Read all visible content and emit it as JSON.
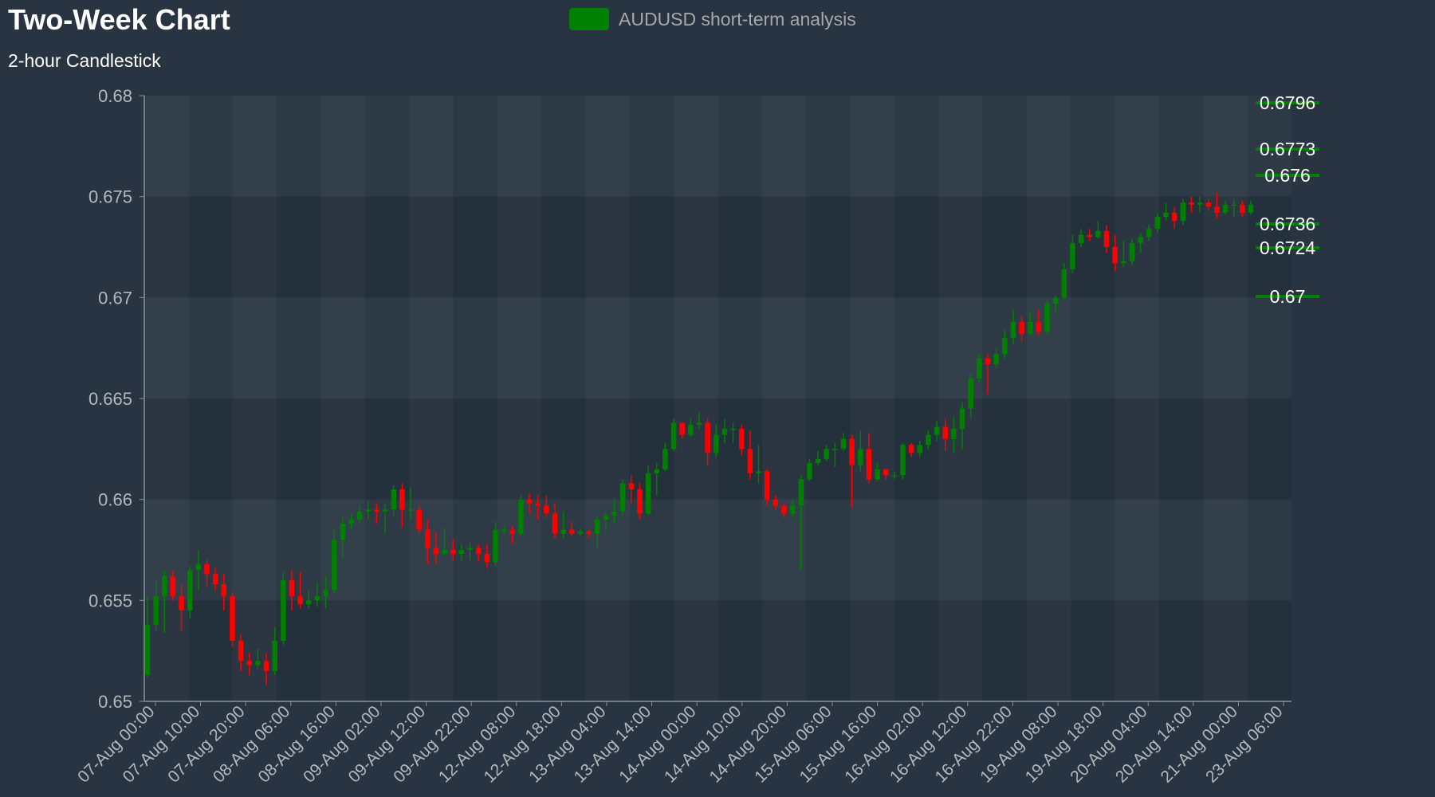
{
  "chart_data": {
    "type": "candlestick",
    "title": "Two-Week Chart",
    "subtitle": "2-hour Candlestick",
    "legend": {
      "label": "AUDUSD short-term analysis",
      "color": "#008000",
      "position": "top-center"
    },
    "ylim": [
      0.65,
      0.68
    ],
    "yticks": [
      "0.65",
      "0.655",
      "0.66",
      "0.665",
      "0.67",
      "0.675",
      "0.68"
    ],
    "xticks": [
      "07-Aug 00:00",
      "07-Aug 10:00",
      "07-Aug 20:00",
      "08-Aug 06:00",
      "08-Aug 16:00",
      "09-Aug 02:00",
      "09-Aug 12:00",
      "09-Aug 22:00",
      "12-Aug 08:00",
      "12-Aug 18:00",
      "13-Aug 04:00",
      "13-Aug 14:00",
      "14-Aug 00:00",
      "14-Aug 10:00",
      "14-Aug 20:00",
      "15-Aug 06:00",
      "15-Aug 16:00",
      "16-Aug 02:00",
      "16-Aug 12:00",
      "16-Aug 22:00",
      "19-Aug 08:00",
      "19-Aug 18:00",
      "20-Aug 04:00",
      "20-Aug 14:00",
      "21-Aug 00:00",
      "23-Aug 06:00"
    ],
    "candles": [
      [
        0.6513,
        0.6538,
        0.6512,
        0.6552
      ],
      [
        0.6538,
        0.6552,
        0.6535,
        0.656
      ],
      [
        0.6552,
        0.6562,
        0.6534,
        0.6565
      ],
      [
        0.6562,
        0.6552,
        0.655,
        0.6565
      ],
      [
        0.6552,
        0.6545,
        0.6535,
        0.6558
      ],
      [
        0.6545,
        0.6565,
        0.6541,
        0.6567
      ],
      [
        0.6565,
        0.6568,
        0.6555,
        0.6575
      ],
      [
        0.6568,
        0.6563,
        0.6557,
        0.657
      ],
      [
        0.6563,
        0.6558,
        0.6555,
        0.6566
      ],
      [
        0.6558,
        0.6552,
        0.6545,
        0.6563
      ],
      [
        0.6552,
        0.653,
        0.6527,
        0.6554
      ],
      [
        0.653,
        0.652,
        0.6515,
        0.6533
      ],
      [
        0.652,
        0.6518,
        0.6513,
        0.6524
      ],
      [
        0.6518,
        0.652,
        0.6516,
        0.6526
      ],
      [
        0.652,
        0.6515,
        0.6508,
        0.6524
      ],
      [
        0.6515,
        0.653,
        0.6513,
        0.6537
      ],
      [
        0.653,
        0.656,
        0.6528,
        0.6564
      ],
      [
        0.656,
        0.6552,
        0.6545,
        0.6565
      ],
      [
        0.6552,
        0.6548,
        0.6546,
        0.6564
      ],
      [
        0.6548,
        0.655,
        0.6546,
        0.6555
      ],
      [
        0.655,
        0.6552,
        0.6547,
        0.6559
      ],
      [
        0.6552,
        0.6555,
        0.6546,
        0.6562
      ],
      [
        0.6555,
        0.658,
        0.6553,
        0.6585
      ],
      [
        0.658,
        0.6588,
        0.6571,
        0.6591
      ],
      [
        0.6588,
        0.659,
        0.6585,
        0.6593
      ],
      [
        0.659,
        0.6594,
        0.6588,
        0.6597
      ],
      [
        0.6594,
        0.6595,
        0.659,
        0.6599
      ],
      [
        0.6595,
        0.6594,
        0.6588,
        0.6598
      ],
      [
        0.6594,
        0.6595,
        0.6583,
        0.6598
      ],
      [
        0.6595,
        0.6605,
        0.6592,
        0.6607
      ],
      [
        0.6605,
        0.6595,
        0.6586,
        0.6608
      ],
      [
        0.6595,
        0.6595,
        0.659,
        0.6606
      ],
      [
        0.6595,
        0.6585,
        0.6583,
        0.6597
      ],
      [
        0.6585,
        0.6576,
        0.6568,
        0.659
      ],
      [
        0.6576,
        0.6573,
        0.6568,
        0.6584
      ],
      [
        0.6573,
        0.6575,
        0.6572,
        0.6586
      ],
      [
        0.6575,
        0.6573,
        0.657,
        0.658
      ],
      [
        0.6573,
        0.6575,
        0.6569,
        0.6578
      ],
      [
        0.6575,
        0.6576,
        0.657,
        0.6579
      ],
      [
        0.6576,
        0.6573,
        0.6569,
        0.6578
      ],
      [
        0.6573,
        0.6569,
        0.6566,
        0.6578
      ],
      [
        0.6569,
        0.6585,
        0.6567,
        0.6589
      ],
      [
        0.6585,
        0.6585,
        0.6583,
        0.6587
      ],
      [
        0.6585,
        0.6583,
        0.6578,
        0.6587
      ],
      [
        0.6583,
        0.66,
        0.6582,
        0.6602
      ],
      [
        0.66,
        0.6598,
        0.6593,
        0.6603
      ],
      [
        0.6598,
        0.6597,
        0.659,
        0.6602
      ],
      [
        0.6597,
        0.6593,
        0.6591,
        0.6602
      ],
      [
        0.6593,
        0.6583,
        0.6581,
        0.6598
      ],
      [
        0.6583,
        0.6585,
        0.6581,
        0.6594
      ],
      [
        0.6585,
        0.6583,
        0.6582,
        0.6589
      ],
      [
        0.6583,
        0.6584,
        0.6582,
        0.6586
      ],
      [
        0.6584,
        0.6583,
        0.6581,
        0.6585
      ],
      [
        0.6583,
        0.659,
        0.6576,
        0.6592
      ],
      [
        0.659,
        0.6592,
        0.6585,
        0.6594
      ],
      [
        0.6592,
        0.6594,
        0.6588,
        0.66
      ],
      [
        0.6594,
        0.6608,
        0.6592,
        0.661
      ],
      [
        0.6608,
        0.6605,
        0.6598,
        0.6612
      ],
      [
        0.6605,
        0.6593,
        0.659,
        0.6608
      ],
      [
        0.6593,
        0.6613,
        0.6592,
        0.6617
      ],
      [
        0.6613,
        0.6615,
        0.6602,
        0.6618
      ],
      [
        0.6615,
        0.6625,
        0.6614,
        0.6628
      ],
      [
        0.6625,
        0.6638,
        0.6624,
        0.664
      ],
      [
        0.6638,
        0.6632,
        0.663,
        0.6638
      ],
      [
        0.6632,
        0.6637,
        0.6631,
        0.664
      ],
      [
        0.6637,
        0.6638,
        0.6635,
        0.6643
      ],
      [
        0.6638,
        0.6623,
        0.6617,
        0.664
      ],
      [
        0.6623,
        0.6632,
        0.6621,
        0.6637
      ],
      [
        0.6632,
        0.6635,
        0.6628,
        0.664
      ],
      [
        0.6635,
        0.6635,
        0.6628,
        0.6638
      ],
      [
        0.6635,
        0.6625,
        0.6622,
        0.6637
      ],
      [
        0.6625,
        0.6613,
        0.661,
        0.6634
      ],
      [
        0.6613,
        0.6614,
        0.6608,
        0.6627
      ],
      [
        0.6614,
        0.66,
        0.6597,
        0.6615
      ],
      [
        0.66,
        0.6597,
        0.6595,
        0.6602
      ],
      [
        0.6597,
        0.6593,
        0.6591,
        0.6598
      ],
      [
        0.6593,
        0.6597,
        0.6591,
        0.66
      ],
      [
        0.6597,
        0.661,
        0.6565,
        0.6612
      ],
      [
        0.661,
        0.6618,
        0.6609,
        0.662
      ],
      [
        0.6618,
        0.662,
        0.6617,
        0.6624
      ],
      [
        0.662,
        0.6625,
        0.6619,
        0.6627
      ],
      [
        0.6625,
        0.6625,
        0.6616,
        0.6628
      ],
      [
        0.6625,
        0.663,
        0.6624,
        0.6633
      ],
      [
        0.663,
        0.6617,
        0.6596,
        0.6632
      ],
      [
        0.6617,
        0.6625,
        0.6614,
        0.6634
      ],
      [
        0.6625,
        0.661,
        0.6608,
        0.6633
      ],
      [
        0.661,
        0.6615,
        0.6609,
        0.6618
      ],
      [
        0.6615,
        0.6612,
        0.661,
        0.6615
      ],
      [
        0.6612,
        0.6612,
        0.661,
        0.6614
      ],
      [
        0.6612,
        0.6627,
        0.661,
        0.6628
      ],
      [
        0.6627,
        0.6623,
        0.6621,
        0.6628
      ],
      [
        0.6623,
        0.6627,
        0.6621,
        0.6629
      ],
      [
        0.6627,
        0.6632,
        0.6625,
        0.6634
      ],
      [
        0.6632,
        0.6636,
        0.6629,
        0.6639
      ],
      [
        0.6636,
        0.663,
        0.6624,
        0.664
      ],
      [
        0.663,
        0.6635,
        0.6623,
        0.6641
      ],
      [
        0.6635,
        0.6645,
        0.6625,
        0.6648
      ],
      [
        0.6645,
        0.666,
        0.664,
        0.6663
      ],
      [
        0.666,
        0.667,
        0.6658,
        0.6672
      ],
      [
        0.667,
        0.6667,
        0.6652,
        0.6672
      ],
      [
        0.6667,
        0.6672,
        0.6665,
        0.6675
      ],
      [
        0.6672,
        0.668,
        0.667,
        0.6684
      ],
      [
        0.668,
        0.6688,
        0.6677,
        0.6694
      ],
      [
        0.6688,
        0.6682,
        0.6678,
        0.6691
      ],
      [
        0.6682,
        0.6688,
        0.6681,
        0.6693
      ],
      [
        0.6688,
        0.6683,
        0.6681,
        0.6694
      ],
      [
        0.6683,
        0.6697,
        0.6682,
        0.6699
      ],
      [
        0.6697,
        0.67,
        0.6692,
        0.6701
      ],
      [
        0.67,
        0.6714,
        0.6699,
        0.6717
      ],
      [
        0.6714,
        0.6727,
        0.6712,
        0.6731
      ],
      [
        0.6727,
        0.6731,
        0.6725,
        0.6734
      ],
      [
        0.6731,
        0.673,
        0.6728,
        0.6734
      ],
      [
        0.673,
        0.6733,
        0.6729,
        0.6738
      ],
      [
        0.6733,
        0.6725,
        0.6722,
        0.6736
      ],
      [
        0.6725,
        0.6717,
        0.6713,
        0.6731
      ],
      [
        0.6717,
        0.6718,
        0.6715,
        0.6728
      ],
      [
        0.6718,
        0.6727,
        0.6716,
        0.6729
      ],
      [
        0.6727,
        0.673,
        0.6722,
        0.6732
      ],
      [
        0.673,
        0.6734,
        0.6728,
        0.6736
      ],
      [
        0.6734,
        0.674,
        0.6732,
        0.6742
      ],
      [
        0.674,
        0.6742,
        0.6738,
        0.6747
      ],
      [
        0.6742,
        0.6738,
        0.6734,
        0.6745
      ],
      [
        0.6738,
        0.6747,
        0.6736,
        0.6749
      ],
      [
        0.6747,
        0.6746,
        0.6742,
        0.675
      ],
      [
        0.6746,
        0.6747,
        0.6742,
        0.675
      ],
      [
        0.6747,
        0.6745,
        0.6743,
        0.6749
      ],
      [
        0.6745,
        0.6742,
        0.6739,
        0.6752
      ],
      [
        0.6742,
        0.6746,
        0.6741,
        0.6748
      ],
      [
        0.6746,
        0.6746,
        0.674,
        0.6749
      ],
      [
        0.6746,
        0.6742,
        0.674,
        0.6748
      ],
      [
        0.6742,
        0.6746,
        0.6741,
        0.6748
      ]
    ],
    "price_levels": [
      {
        "label": "0.6796",
        "value": 0.6796
      },
      {
        "label": "0.6773",
        "value": 0.6773
      },
      {
        "label": "0.676",
        "value": 0.676
      },
      {
        "label": "0.6736",
        "value": 0.6736
      },
      {
        "label": "0.6724",
        "value": 0.6724
      },
      {
        "label": "0.67",
        "value": 0.67
      }
    ],
    "colors": {
      "up": "#008000",
      "down": "#ff0000",
      "level_line": "#008000"
    },
    "grid": true
  }
}
